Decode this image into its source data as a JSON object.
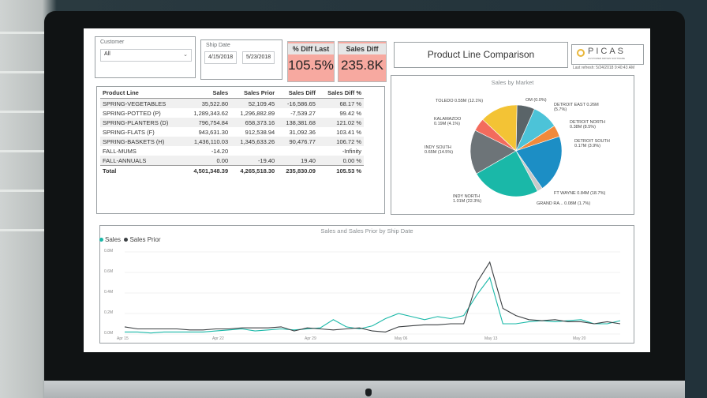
{
  "filters": {
    "customer": {
      "title": "Customer",
      "value": "All"
    },
    "ship_date": {
      "title": "Ship Date",
      "start": "4/15/2018",
      "end": "5/23/2018"
    }
  },
  "kpis": {
    "pct_diff": {
      "title": "% Diff Last",
      "value": "105.5%"
    },
    "sales_diff": {
      "title": "Sales Diff",
      "value": "235.8K"
    }
  },
  "report_title": "Product Line Comparison",
  "logo": {
    "text": "PICAS",
    "subtitle": "CUSTOMER DRIVEN SOFTWARE",
    "refresh": "Last refresh: 5/24/2018 9:40:43 AM"
  },
  "table": {
    "headers": [
      "Product Line",
      "Sales",
      "Sales Prior",
      "Sales Diff",
      "Sales Diff %"
    ],
    "rows": [
      [
        "SPRING-VEGETABLES",
        "35,522.80",
        "52,109.45",
        "-16,586.65",
        "68.17 %"
      ],
      [
        "SPRING-POTTED (P)",
        "1,289,343.62",
        "1,296,882.89",
        "-7,539.27",
        "99.42 %"
      ],
      [
        "SPRING-PLANTERS (D)",
        "796,754.84",
        "658,373.16",
        "138,381.68",
        "121.02 %"
      ],
      [
        "SPRING-FLATS (F)",
        "943,631.30",
        "912,538.94",
        "31,092.36",
        "103.41 %"
      ],
      [
        "SPRING-BASKETS (H)",
        "1,436,110.03",
        "1,345,633.26",
        "90,476.77",
        "106.72 %"
      ],
      [
        "FALL-MUMS",
        "-14.20",
        "",
        "",
        "-Infinity"
      ],
      [
        "FALL-ANNUALS",
        "0.00",
        "-19.40",
        "19.40",
        "0.00 %"
      ]
    ],
    "total": [
      "Total",
      "4,501,348.39",
      "4,265,518.30",
      "235,830.09",
      "105.53 %"
    ]
  },
  "pie": {
    "title": "Sales by Market",
    "labels": [
      "OM (0.0%)",
      "DETROIT EAST 0.26M (5.7%)",
      "DETROIT NORTH 0.38M (8.5%)",
      "DETROIT SOUTH 0.17M (3.9%)",
      "FT WAYNE 0.84M (18.7%)",
      "GRAND RA... 0.08M (1.7%)",
      "INDY NORTH 1.01M (22.3%)",
      "INDY SOUTH 0.65M (14.5%)",
      "KALAMAZOO 0.19M (4.1%)",
      "TOLEDO 0.55M (12.1%)"
    ]
  },
  "line": {
    "title": "Sales and Sales Prior by Ship Date",
    "legend": [
      "Sales",
      "Sales Prior"
    ],
    "y_ticks": [
      "0.8M",
      "0.6M",
      "0.4M",
      "0.2M",
      "0.0M"
    ],
    "x_ticks": [
      "Apr 15",
      "Apr 22",
      "Apr 29",
      "May 06",
      "May 13",
      "May 20"
    ]
  },
  "chart_data": [
    {
      "type": "pie",
      "title": "Sales by Market",
      "categories": [
        "DETROIT EAST",
        "DETROIT NORTH",
        "DETROIT SOUTH",
        "FT WAYNE",
        "GRAND RA...",
        "INDY NORTH",
        "INDY SOUTH",
        "KALAMAZOO",
        "TOLEDO",
        "OM"
      ],
      "values": [
        0.26,
        0.38,
        0.17,
        0.84,
        0.08,
        1.01,
        0.65,
        0.19,
        0.55,
        0.0
      ],
      "colors": [
        "#5a6468",
        "#4cc3d8",
        "#f08a3c",
        "#1c8ec5",
        "#c9c9c9",
        "#1ab8a8",
        "#6d7478",
        "#f36b5d",
        "#f3c335",
        "#e23b3b"
      ]
    },
    {
      "type": "line",
      "title": "Sales and Sales Prior by Ship Date",
      "ylim": [
        0,
        0.8
      ],
      "x": [
        "Apr 15",
        "Apr 16",
        "Apr 17",
        "Apr 18",
        "Apr 19",
        "Apr 20",
        "Apr 21",
        "Apr 22",
        "Apr 23",
        "Apr 24",
        "Apr 25",
        "Apr 26",
        "Apr 27",
        "Apr 28",
        "Apr 29",
        "Apr 30",
        "May 01",
        "May 02",
        "May 03",
        "May 04",
        "May 05",
        "May 06",
        "May 07",
        "May 08",
        "May 09",
        "May 10",
        "May 11",
        "May 12",
        "May 13",
        "May 14",
        "May 15",
        "May 16",
        "May 17",
        "May 18",
        "May 19",
        "May 20",
        "May 21",
        "May 22",
        "May 23"
      ],
      "series": [
        {
          "name": "Sales",
          "color": "#1ab8a8",
          "values": [
            0.02,
            0.02,
            0.01,
            0.02,
            0.02,
            0.02,
            0.02,
            0.03,
            0.04,
            0.05,
            0.03,
            0.04,
            0.05,
            0.04,
            0.05,
            0.06,
            0.14,
            0.07,
            0.05,
            0.08,
            0.15,
            0.2,
            0.17,
            0.14,
            0.17,
            0.15,
            0.18,
            0.38,
            0.55,
            0.1,
            0.1,
            0.12,
            0.13,
            0.12,
            0.13,
            0.14,
            0.1,
            0.1,
            0.13
          ]
        },
        {
          "name": "Sales Prior",
          "color": "#3b3f42",
          "values": [
            0.07,
            0.05,
            0.05,
            0.05,
            0.05,
            0.04,
            0.04,
            0.05,
            0.05,
            0.06,
            0.06,
            0.06,
            0.07,
            0.03,
            0.06,
            0.05,
            0.04,
            0.05,
            0.06,
            0.03,
            0.02,
            0.07,
            0.08,
            0.09,
            0.09,
            0.1,
            0.1,
            0.5,
            0.7,
            0.25,
            0.18,
            0.14,
            0.13,
            0.14,
            0.12,
            0.12,
            0.1,
            0.12,
            0.1
          ]
        }
      ]
    }
  ]
}
